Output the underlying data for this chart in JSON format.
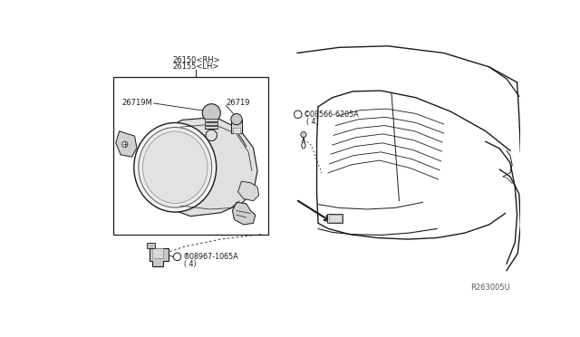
{
  "bg_color": "#ffffff",
  "line_color": "#1a1a1a",
  "fig_width": 6.4,
  "fig_height": 3.72,
  "dpi": 100,
  "label_26150rh": "26150<RH>",
  "label_26155lh": "26155<LH>",
  "label_26719m": "26719M",
  "label_26719": "26719",
  "label_s08566": "©08566-6205A",
  "label_s08566_sub": "( 4)",
  "label_n08967": "®08967-1065A",
  "label_n08967_sub": "( 4)",
  "label_ref": "R263005U"
}
